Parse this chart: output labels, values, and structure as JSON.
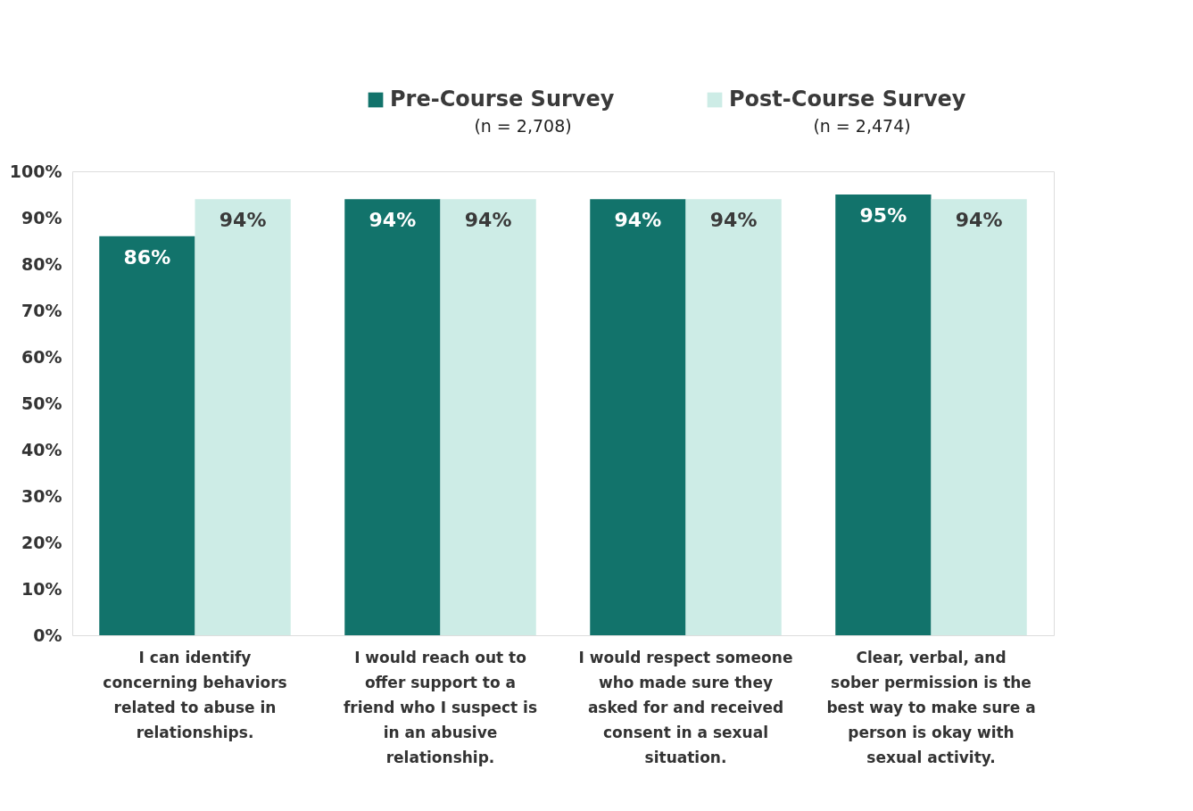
{
  "chart_data": {
    "type": "bar",
    "categories": [
      "I can identify concerning behaviors related to abuse in relationships.",
      "I would reach out to offer support to a friend who I suspect is in an abusive relationship.",
      "I would respect someone who made sure they asked for and received consent in a sexual situation.",
      "Clear, verbal, and sober permission is the best way to make sure a person is okay with sexual activity."
    ],
    "series": [
      {
        "name": "Pre-Course Survey (n = 2,708)",
        "color": "#12736b",
        "values": [
          86,
          94,
          94,
          95
        ],
        "value_labels": [
          "86%",
          "94%",
          "94%",
          "95%"
        ]
      },
      {
        "name": "Post-Course Survey (n = 2,474)",
        "color": "#cdece6",
        "values": [
          94,
          94,
          94,
          94
        ],
        "value_labels": [
          "94%",
          "94%",
          "94%",
          "94%"
        ]
      }
    ],
    "ylim": [
      0,
      100
    ],
    "yticks": [
      {
        "value": 0,
        "label": "0%"
      },
      {
        "value": 10,
        "label": "10%"
      },
      {
        "value": 20,
        "label": "20%"
      },
      {
        "value": 30,
        "label": "30%"
      },
      {
        "value": 40,
        "label": "40%"
      },
      {
        "value": 50,
        "label": "50%"
      },
      {
        "value": 60,
        "label": "60%"
      },
      {
        "value": 70,
        "label": "70%"
      },
      {
        "value": 80,
        "label": "80%"
      },
      {
        "value": 90,
        "label": "90%"
      },
      {
        "value": 100,
        "label": "100%"
      }
    ],
    "grid": false,
    "legend": "top"
  }
}
